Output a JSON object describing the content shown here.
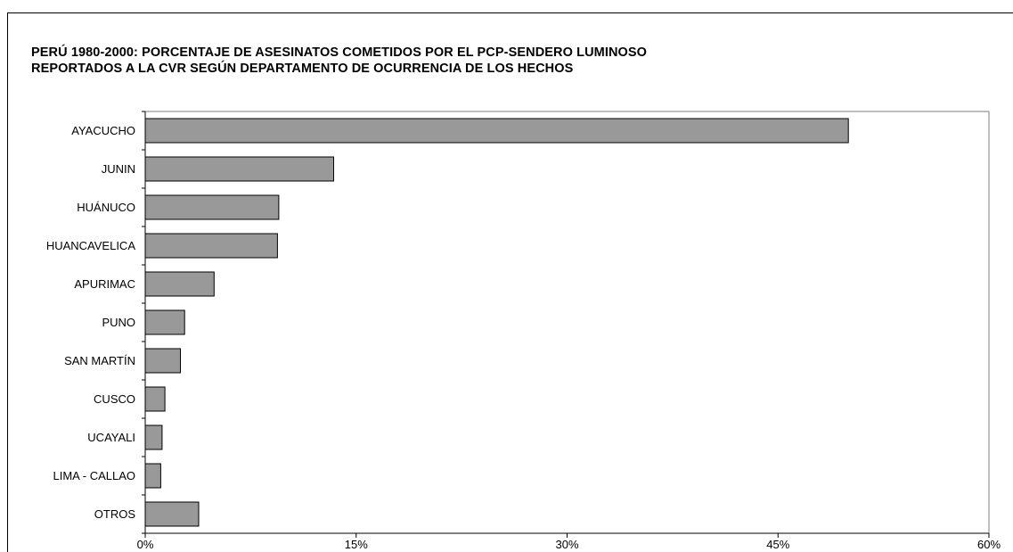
{
  "chart_data": {
    "type": "bar",
    "orientation": "horizontal",
    "title": [
      "PERÚ 1980-2000: PORCENTAJE DE ASESINATOS COMETIDOS POR EL PCP-SENDERO LUMINOSO",
      "REPORTADOS A LA CVR SEGÚN DEPARTAMENTO DE OCURRENCIA DE LOS HECHOS"
    ],
    "categories": [
      "AYACUCHO",
      "JUNIN",
      "HUÁNUCO",
      "HUANCAVELICA",
      "APURIMAC",
      "PUNO",
      "SAN MARTÍN",
      "CUSCO",
      "UCAYALI",
      "LIMA - CALLAO",
      "OTROS"
    ],
    "values": [
      50.0,
      13.4,
      9.5,
      9.4,
      4.9,
      2.8,
      2.5,
      1.4,
      1.2,
      1.1,
      3.8
    ],
    "xlim": [
      0,
      60
    ],
    "xticks": [
      0,
      15,
      30,
      45,
      60
    ],
    "xtick_labels": [
      "0%",
      "15%",
      "30%",
      "45%",
      "60%"
    ],
    "grid": false,
    "bar_color": "#999999",
    "bar_edge_color": "#000000"
  }
}
